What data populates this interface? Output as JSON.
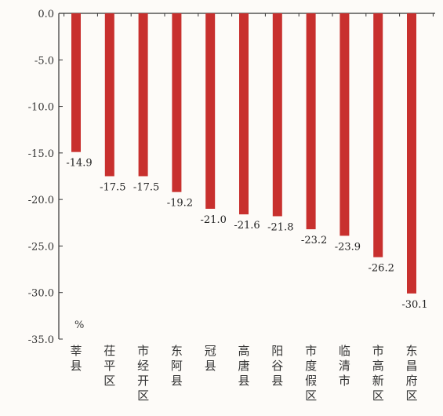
{
  "chart_data": {
    "type": "bar",
    "categories": [
      "莘县",
      "茌平区",
      "市经开区",
      "东阿县",
      "冠县",
      "高唐县",
      "阳谷县",
      "市度假区",
      "临清市",
      "市高新区",
      "东昌府区"
    ],
    "values": [
      -14.9,
      -17.5,
      -17.5,
      -19.2,
      -21.0,
      -21.6,
      -21.8,
      -23.2,
      -23.9,
      -26.2,
      -30.1
    ],
    "data_labels": [
      "-14.9",
      "-17.5",
      "-17.5",
      "-19.2",
      "-21.0",
      "-21.6",
      "-21.8",
      "-23.2",
      "-23.9",
      "-26.2",
      "-30.1"
    ],
    "y_ticks": [
      0,
      -5,
      -10,
      -15,
      -20,
      -25,
      -30,
      -35
    ],
    "y_tick_labels": [
      "0.0",
      "-5.0",
      "-10.0",
      "-15.0",
      "-20.0",
      "-25.0",
      "-30.0",
      "-35.0"
    ],
    "ylim": [
      -35,
      0
    ],
    "unit": "%",
    "title": "",
    "xlabel": "",
    "ylabel": "",
    "grid": false,
    "legend": "none",
    "bar_color": "#c8302e",
    "axis_color": "#333333"
  }
}
